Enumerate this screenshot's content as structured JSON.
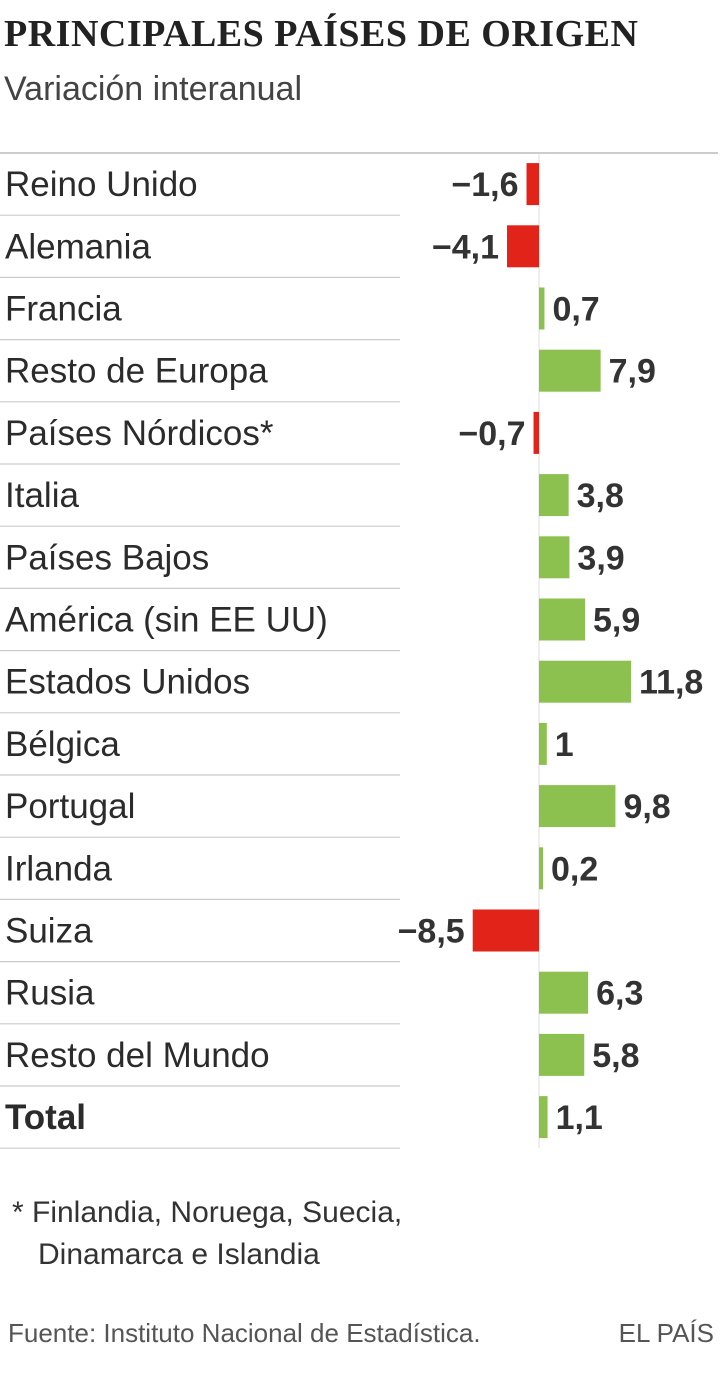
{
  "header": {
    "title": "PRINCIPALES PAÍSES DE ORIGEN",
    "subtitle": "Variación interanual"
  },
  "footnote": {
    "line1": "* Finlandia, Noruega, Suecia,",
    "line2": "Dinamarca e Islandia"
  },
  "footer": {
    "source": "Fuente: Instituto Nacional de Estadística.",
    "brand": "EL PAÍS"
  },
  "colors": {
    "positive": "#8dc14f",
    "negative": "#e2231a",
    "separator": "#cccccc",
    "text": "#2b2b2b"
  },
  "chart_data": {
    "type": "bar",
    "orientation": "horizontal",
    "title": "PRINCIPALES PAÍSES DE ORIGEN",
    "subtitle": "Variación interanual",
    "categories": [
      "Reino Unido",
      "Alemania",
      "Francia",
      "Resto de Europa",
      "Países Nórdicos*",
      "Italia",
      "Países Bajos",
      "América (sin EE UU)",
      "Estados Unidos",
      "Bélgica",
      "Portugal",
      "Irlanda",
      "Suiza",
      "Rusia",
      "Resto del Mundo",
      "Total"
    ],
    "values": [
      -1.6,
      -4.1,
      0.7,
      7.9,
      -0.7,
      3.8,
      3.9,
      5.9,
      11.8,
      1,
      9.8,
      0.2,
      -8.5,
      6.3,
      5.8,
      1.1
    ],
    "value_labels": [
      "−1,6",
      "−4,1",
      "0,7",
      "7,9",
      "−0,7",
      "3,8",
      "3,9",
      "5,9",
      "11,8",
      "1",
      "9,8",
      "0,2",
      "−8,5",
      "6,3",
      "5,8",
      "1,1"
    ],
    "bold_categories": [
      "Total"
    ],
    "grid": false
  }
}
